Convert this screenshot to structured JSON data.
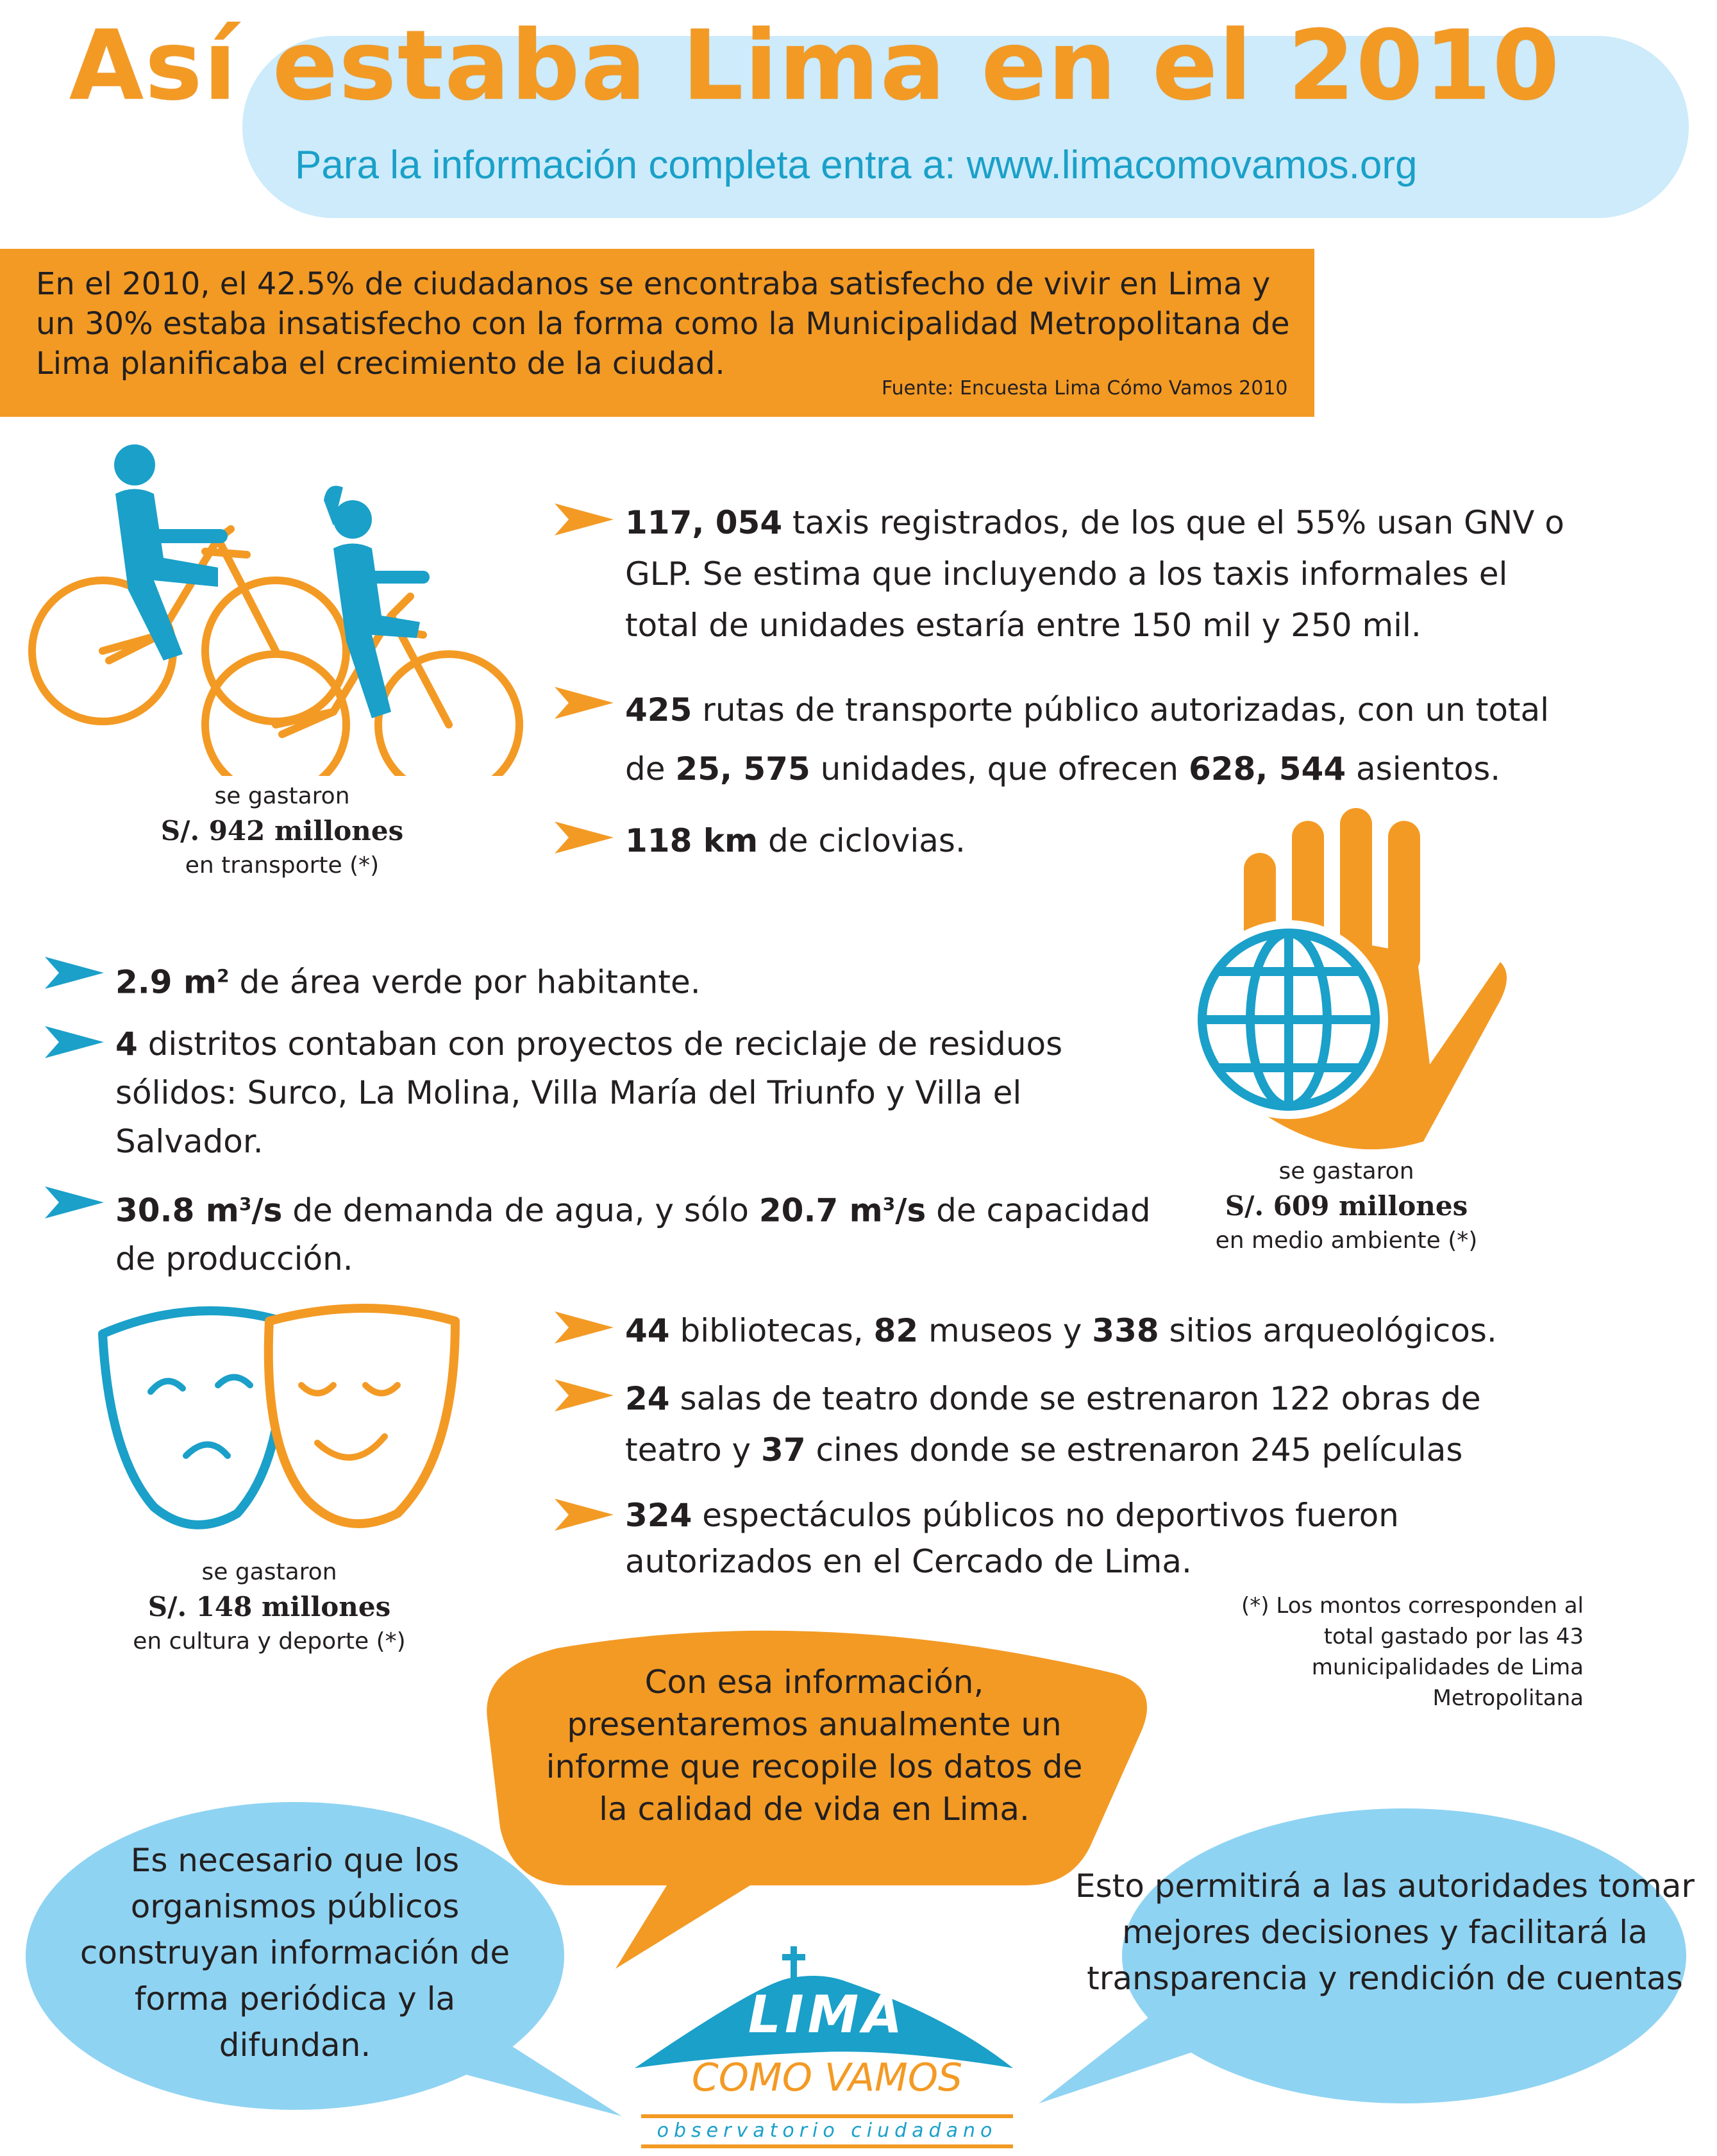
{
  "header": {
    "title": "Así estaba Lima en el 2010",
    "subtitle": "Para la información completa entra a: www.limacomovamos.org"
  },
  "intro": {
    "text": "En el 2010, el 42.5% de ciudadanos se encontraba satisfecho de vivir en Lima y un 30%  estaba insatisfecho con la forma como la Municipalidad Metropolitana de Lima planificaba el crecimiento de la ciudad.",
    "source": "Fuente: Encuesta Lima Cómo Vamos 2010"
  },
  "transport": {
    "bullets": [
      {
        "bold": "117, 054",
        "text": " taxis registrados, de los que el 55% usan GNV o GLP. Se estima que incluyendo a los taxis informales el total de unidades estaría entre 150 mil y 250 mil."
      },
      {
        "bold": "425",
        "text": " rutas de transporte público autorizadas, con un total de ",
        "bold2": "25, 575",
        "text2": " unidades, que ofrecen ",
        "bold3": "628, 544",
        "text3": " asientos."
      },
      {
        "bold": "118 km",
        "text": " de ciclovias."
      }
    ],
    "caption": {
      "line1": "se gastaron",
      "amount": "S/. 942  millones",
      "line3": "en transporte (*)"
    }
  },
  "environment": {
    "bullets": [
      {
        "bold": "2.9 m",
        "sup": "2",
        "text": " de área verde por habitante."
      },
      {
        "bold": "4",
        "text": " distritos contaban con proyectos de reciclaje de residuos sólidos: Surco, La Molina, Villa María del Triunfo y Villa el Salvador."
      },
      {
        "bold": "30.8 m",
        "sup": "3",
        "bold_tail": "/s",
        "text": " de demanda de agua, y sólo ",
        "bold2": "20.7 m",
        "sup2": "3",
        "bold2_tail": "/s",
        "text2": " de capacidad de producción."
      }
    ],
    "caption": {
      "line1": "se gastaron",
      "amount": "S/. 609 millones",
      "line3": "en medio ambiente (*)"
    }
  },
  "culture": {
    "bullets": [
      {
        "bold": "44",
        "text": " bibliotecas, ",
        "bold2": "82",
        "text2": " museos y ",
        "bold3": "338",
        "text3": " sitios arqueológicos."
      },
      {
        "bold": "24",
        "text": " salas de teatro donde se estrenaron 122 obras de teatro y ",
        "bold2": "37",
        "text2": " cines donde se estrenaron 245 películas"
      },
      {
        "bold": "324",
        "text": " espectáculos públicos no deportivos fueron autorizados en el Cercado de Lima."
      }
    ],
    "caption": {
      "line1": "se gastaron",
      "amount": "S/. 148 millones",
      "line3": "en cultura y deporte (*)"
    }
  },
  "note": "(*) Los montos corresponden al total gastado  por las  43 municipalidades de Lima Metropolitana",
  "bubbles": {
    "center": "Con esa información, presentaremos anualmente un informe que recopile los datos de la calidad de vida en Lima.",
    "left": "Es necesario que los organismos públicos construyan información de forma periódica y la difundan.",
    "right": "Esto permitirá a las autoridades tomar mejores decisiones y facilitará la transparencia y rendición de cuentas"
  },
  "logo": {
    "line1": "LIMA",
    "line2": "COMO VAMOS",
    "line3": "observatorio ciudadano"
  },
  "colors": {
    "orange": "#f39a24",
    "blue": "#1aa0c9",
    "light_blue": "#cdebfa",
    "bubble_blue": "#8fd3f2"
  },
  "icons": [
    "bicycle-riders-icon",
    "globe-hand-icon",
    "theater-masks-icon",
    "bullet-arrow-icon"
  ]
}
